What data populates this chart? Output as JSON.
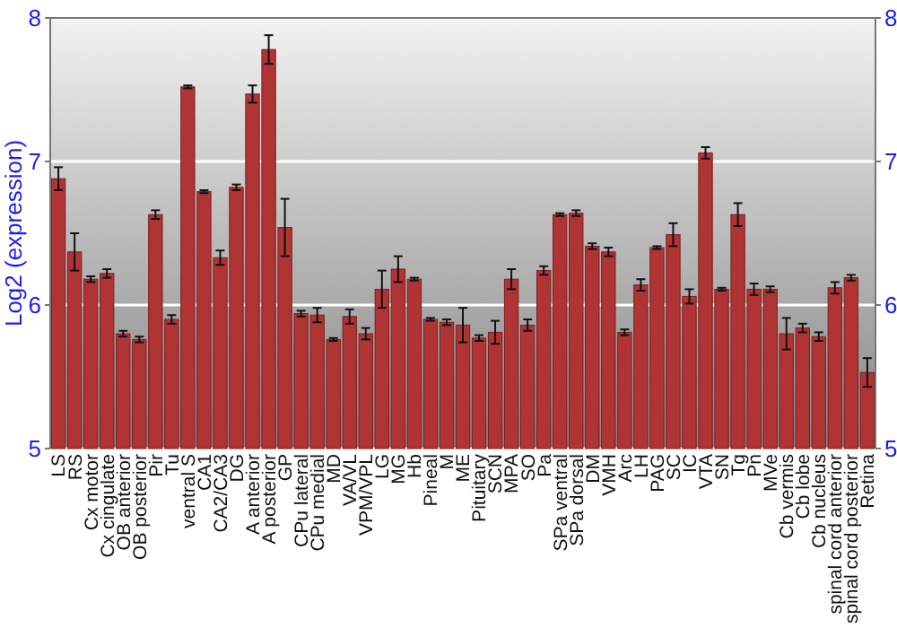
{
  "chart_data": {
    "type": "bar",
    "ylabel": "Log2 (expression)",
    "categories": [
      "LS",
      "RS",
      "Cx motor",
      "Cx cingulate",
      "OB anterior",
      "OB posterior",
      "Pir",
      "Tu",
      "ventral S",
      "CA1",
      "CA2/CA3",
      "DG",
      "A anterior",
      "A posterior",
      "GP",
      "CPu lateral",
      "CPu medial",
      "MD",
      "VA/VL",
      "VPM/VPL",
      "LG",
      "MG",
      "Hb",
      "Pineal",
      "M",
      "ME",
      "Pituitary",
      "SCN",
      "MPA",
      "SO",
      "Pa",
      "SPa ventral",
      "SPa dorsal",
      "DM",
      "VMH",
      "Arc",
      "LH",
      "PAG",
      "SC",
      "IC",
      "VTA",
      "SN",
      "Tg",
      "Pn",
      "MVe",
      "Cb vermis",
      "Cb lobe",
      "Cb nucleus",
      "spinal cord anterior",
      "spinal cord posterior",
      "Retina"
    ],
    "values": [
      6.88,
      6.37,
      6.18,
      6.22,
      5.8,
      5.76,
      6.63,
      5.9,
      7.52,
      6.79,
      6.33,
      6.82,
      7.47,
      7.78,
      6.54,
      5.94,
      5.93,
      5.76,
      5.92,
      5.8,
      6.11,
      6.25,
      6.18,
      5.9,
      5.88,
      5.86,
      5.77,
      5.81,
      6.18,
      5.86,
      6.24,
      6.63,
      6.64,
      6.41,
      6.37,
      5.81,
      6.14,
      6.4,
      6.49,
      6.06,
      7.06,
      6.11,
      6.63,
      6.11,
      6.11,
      5.8,
      5.84,
      5.78,
      6.12,
      6.19,
      5.53
    ],
    "errors": [
      0.08,
      0.13,
      0.02,
      0.03,
      0.02,
      0.02,
      0.03,
      0.03,
      0.01,
      0.01,
      0.05,
      0.02,
      0.06,
      0.1,
      0.2,
      0.02,
      0.05,
      0.01,
      0.05,
      0.04,
      0.13,
      0.09,
      0.01,
      0.01,
      0.02,
      0.12,
      0.02,
      0.08,
      0.07,
      0.04,
      0.03,
      0.01,
      0.02,
      0.02,
      0.03,
      0.02,
      0.04,
      0.01,
      0.08,
      0.05,
      0.04,
      0.01,
      0.08,
      0.04,
      0.02,
      0.11,
      0.03,
      0.03,
      0.04,
      0.02,
      0.1
    ],
    "color": "#b03434",
    "ylim": [
      5,
      8
    ],
    "yticks": [
      5,
      6,
      7,
      8
    ],
    "y2lim": [
      5,
      8
    ],
    "y2ticks": [
      5,
      6,
      7,
      8
    ],
    "grid": "y"
  }
}
